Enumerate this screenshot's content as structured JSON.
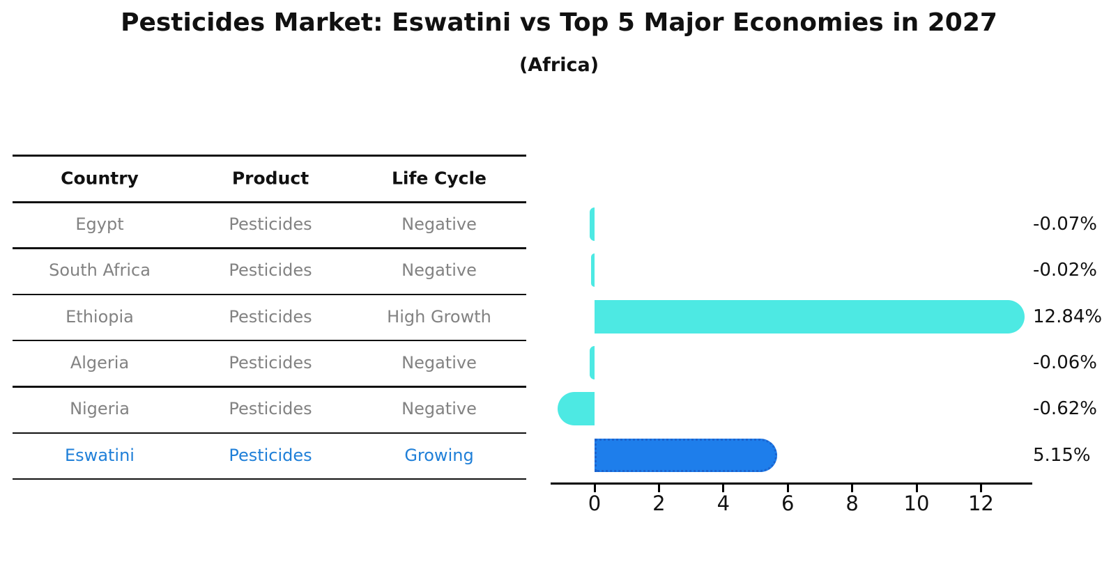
{
  "title": "Pesticides Market: Eswatini vs Top 5 Major Economies in 2027",
  "subtitle": "(Africa)",
  "table": {
    "headers": [
      "Country",
      "Product",
      "Life Cycle"
    ],
    "rows": [
      {
        "country": "Egypt",
        "product": "Pesticides",
        "life_cycle": "Negative",
        "highlight": false
      },
      {
        "country": "South Africa",
        "product": "Pesticides",
        "life_cycle": "Negative",
        "highlight": false
      },
      {
        "country": "Ethiopia",
        "product": "Pesticides",
        "life_cycle": "High Growth",
        "highlight": false
      },
      {
        "country": "Algeria",
        "product": "Pesticides",
        "life_cycle": "Negative",
        "highlight": false
      },
      {
        "country": "Nigeria",
        "product": "Pesticides",
        "life_cycle": "Negative",
        "highlight": false
      },
      {
        "country": "Eswatini",
        "product": "Pesticides",
        "life_cycle": "Growing",
        "highlight": true
      }
    ]
  },
  "chart_data": {
    "type": "bar",
    "orientation": "horizontal",
    "title": "Pesticides Market: Eswatini vs Top 5 Major Economies in 2027",
    "subtitle": "(Africa)",
    "categories": [
      "Egypt",
      "South Africa",
      "Ethiopia",
      "Algeria",
      "Nigeria",
      "Eswatini"
    ],
    "values": [
      -0.07,
      -0.02,
      12.84,
      -0.06,
      -0.62,
      5.15
    ],
    "value_labels": [
      "-0.07%",
      "-0.02%",
      "12.84%",
      "-0.06%",
      "-0.62%",
      "5.15%"
    ],
    "unit": "%",
    "xticks": [
      0,
      2,
      4,
      6,
      8,
      10,
      12
    ],
    "xlim": [
      -1.4,
      13.6
    ],
    "grid": false,
    "legend": false,
    "highlight_category": "Eswatini"
  },
  "colors": {
    "bar_default": "#4DE9E3",
    "bar_highlight": "#1E7EEB",
    "bar_highlight_border": "#1B63CE",
    "highlight_text": "#1F7FD8",
    "table_text": "#828282",
    "heading_text": "#111111",
    "axis": "#000000"
  }
}
